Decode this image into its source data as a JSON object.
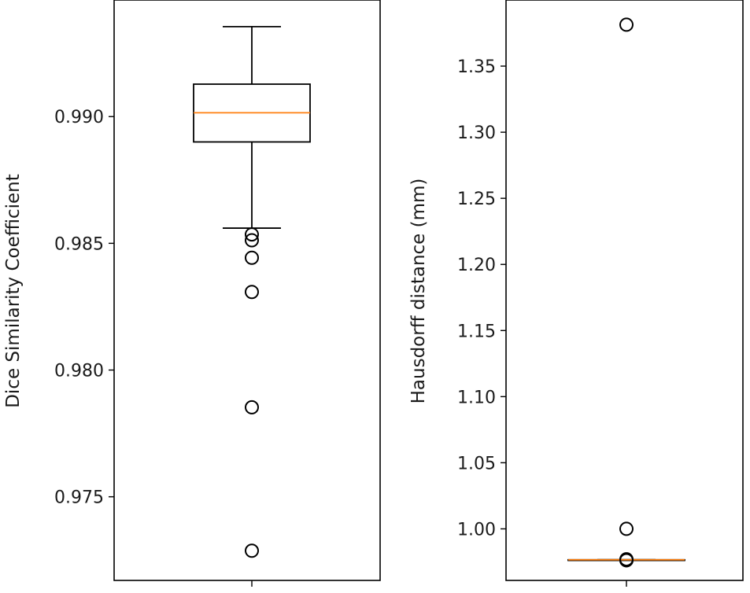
{
  "chart_data": [
    {
      "type": "box",
      "xlabel": "",
      "ylabel": "Dice Similarity Coefficient",
      "ylim": [
        0.9717,
        0.9946
      ],
      "yticks": [
        0.975,
        0.98,
        0.985,
        0.99
      ],
      "ytick_labels": [
        "0.975",
        "0.980",
        "0.985",
        "0.990"
      ],
      "box": {
        "whislo": 0.9856,
        "q1": 0.989,
        "med": 0.99015,
        "q3": 0.99128,
        "whishi": 0.99355
      },
      "fliers": [
        0.98535,
        0.98512,
        0.98443,
        0.98308,
        0.97853,
        0.97287
      ],
      "colors": {
        "box": "#000000",
        "median": "#ff7f0e",
        "flier": "#000000"
      }
    },
    {
      "type": "box",
      "xlabel": "",
      "ylabel": "Hausdorff distance (mm)",
      "ylim": [
        0.961,
        1.4
      ],
      "yticks": [
        1.0,
        1.05,
        1.1,
        1.15,
        1.2,
        1.25,
        1.3,
        1.35
      ],
      "ytick_labels": [
        "1.00",
        "1.05",
        "1.10",
        "1.15",
        "1.20",
        "1.25",
        "1.30",
        "1.35"
      ],
      "box": {
        "whislo": 0.9766,
        "q1": 0.9766,
        "med": 0.9766,
        "q3": 0.9766,
        "whishi": 0.9766
      },
      "fliers": [
        1.3813,
        1.0,
        0.977,
        0.9762
      ],
      "colors": {
        "box": "#000000",
        "median": "#ff7f0e",
        "flier": "#000000"
      }
    }
  ]
}
